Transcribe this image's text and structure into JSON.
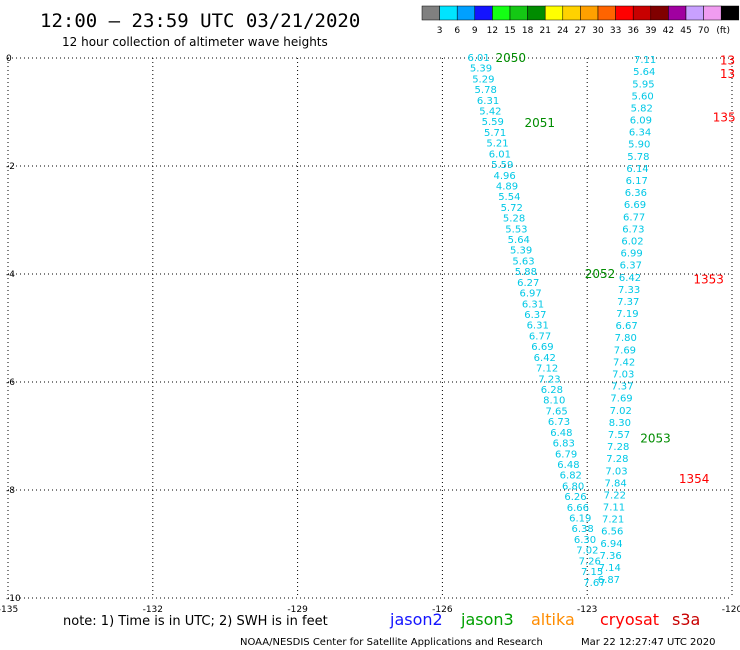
{
  "header": {
    "title": "12:00 – 23:59 UTC 03/21/2020",
    "subtitle": "12 hour collection of altimeter wave heights"
  },
  "legend": {
    "colors": [
      "#808080",
      "#00e4ff",
      "#00a0ff",
      "#1414ff",
      "#14ff14",
      "#14c814",
      "#008c00",
      "#ffff00",
      "#ffd200",
      "#ffa000",
      "#ff6400",
      "#ff0000",
      "#c80000",
      "#800000",
      "#a000a0",
      "#c8a0ff",
      "#f09cf0",
      "#000000"
    ],
    "labels": [
      "3",
      "6",
      "9",
      "12",
      "15",
      "18",
      "21",
      "24",
      "27",
      "30",
      "33",
      "36",
      "39",
      "42",
      "45",
      "70"
    ],
    "unit": "(ft)"
  },
  "footer": {
    "note": "note:  1) Time is in UTC;  2) SWH is in feet",
    "satellites": [
      {
        "name": "jason2",
        "color": "#1414ff"
      },
      {
        "name": "jason3",
        "color": "#00a000"
      },
      {
        "name": "altika",
        "color": "#ff8c00"
      },
      {
        "name": "cryosat",
        "color": "#ff0000"
      },
      {
        "name": "s3a",
        "color": "#c80000"
      }
    ],
    "credit": "NOAA/NESDIS Center for Satellite Applications and Research",
    "timestamp": "Mar 22 12:27:47 UTC 2020"
  },
  "chart_data": {
    "type": "scatter",
    "xlim": [
      -135,
      -120
    ],
    "ylim": [
      -10,
      0
    ],
    "x_ticks": [
      "-135",
      "-132",
      "-129",
      "-126",
      "-123",
      "-120"
    ],
    "y_ticks": [
      "0",
      "-2",
      "-4",
      "-6",
      "-8",
      "-10"
    ],
    "grid": true,
    "series": [
      {
        "color": "#00c8e6",
        "start": [
          -125.25,
          0.02
        ],
        "end": [
          -122.85,
          -9.7
        ],
        "values": [
          "6.01",
          "5.39",
          "5.29",
          "5.78",
          "6.31",
          "5.42",
          "5.59",
          "5.71",
          "5.21",
          "6.01",
          "5.59",
          "4.96",
          "4.89",
          "5.54",
          "5.72",
          "5.28",
          "5.53",
          "5.64",
          "5.39",
          "5.63",
          "5.88",
          "6.27",
          "6.97",
          "6.31",
          "6.37",
          "6.31",
          "6.77",
          "6.69",
          "6.42",
          "7.12",
          "7.23",
          "6.28",
          "8.10",
          "7.65",
          "6.73",
          "6.48",
          "6.83",
          "6.79",
          "6.48",
          "6.82",
          "6.80",
          "6.26",
          "6.66",
          "6.19",
          "6.38",
          "6.30",
          "7.02",
          "7.26",
          "7.15",
          "7.67"
        ]
      },
      {
        "color": "#00c8e6",
        "start": [
          -121.8,
          -0.02
        ],
        "end": [
          -122.55,
          -9.65
        ],
        "values": [
          "7.11",
          "5.64",
          "5.95",
          "5.60",
          "5.82",
          "6.09",
          "6.34",
          "5.90",
          "5.78",
          "6.14",
          "6.17",
          "6.36",
          "6.69",
          "6.77",
          "6.73",
          "6.02",
          "6.99",
          "6.37",
          "6.42",
          "7.33",
          "7.37",
          "7.19",
          "6.67",
          "7.80",
          "7.69",
          "7.42",
          "7.03",
          "7.37",
          "7.69",
          "7.02",
          "8.30",
          "7.57",
          "7.28",
          "7.28",
          "7.03",
          "7.84",
          "7.22",
          "7.11",
          "7.21",
          "6.56",
          "6.94",
          "7.36",
          "7.14",
          "6.87"
        ]
      }
    ],
    "pass_labels": [
      {
        "text": "2050",
        "x": -124.9,
        "y": 0,
        "color": "#008c00"
      },
      {
        "text": "2051",
        "x": -124.3,
        "y": -1.2,
        "color": "#008c00"
      },
      {
        "text": "2052",
        "x": -123.05,
        "y": -4.0,
        "color": "#008c00"
      },
      {
        "text": "2053",
        "x": -121.9,
        "y": -7.05,
        "color": "#008c00"
      },
      {
        "text": "13",
        "x": -120.25,
        "y": -0.05,
        "color": "#ff0000"
      },
      {
        "text": "13",
        "x": -120.25,
        "y": -0.3,
        "color": "#ff0000"
      },
      {
        "text": "135",
        "x": -120.4,
        "y": -1.1,
        "color": "#ff0000"
      },
      {
        "text": "1353",
        "x": -120.8,
        "y": -4.1,
        "color": "#ff0000"
      },
      {
        "text": "1354",
        "x": -121.1,
        "y": -7.8,
        "color": "#ff0000"
      }
    ]
  }
}
